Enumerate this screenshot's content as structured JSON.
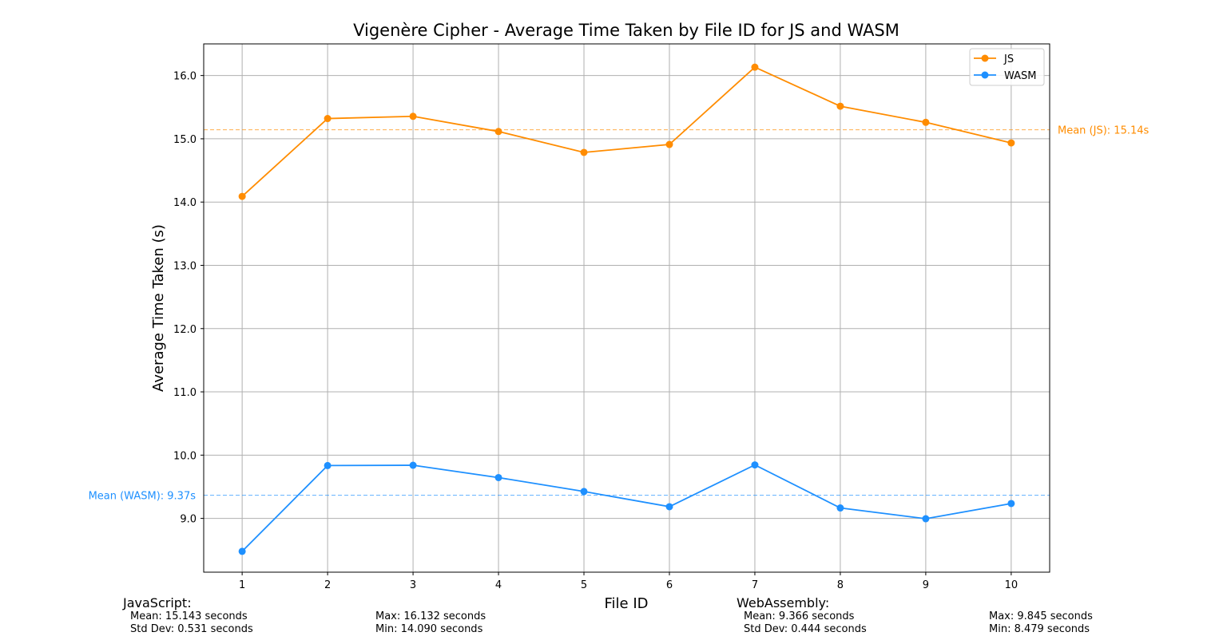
{
  "chart_data": {
    "type": "line",
    "title": "Vigenère Cipher - Average Time Taken by File ID for JS and WASM",
    "xlabel": "File ID",
    "ylabel": "Average Time Taken (s)",
    "x": [
      1,
      2,
      3,
      4,
      5,
      6,
      7,
      8,
      9,
      10
    ],
    "xlim": [
      0.55,
      10.45
    ],
    "ylim": [
      8.15,
      16.5
    ],
    "yticks": [
      "9.0",
      "10.0",
      "11.0",
      "12.0",
      "13.0",
      "14.0",
      "15.0",
      "16.0"
    ],
    "xticks": [
      "1",
      "2",
      "3",
      "4",
      "5",
      "6",
      "7",
      "8",
      "9",
      "10"
    ],
    "grid": true,
    "legend_position": "top-right",
    "series": [
      {
        "name": "JS",
        "color": "#ff8c00",
        "values": [
          14.09,
          15.32,
          15.355,
          15.115,
          14.785,
          14.91,
          16.132,
          15.515,
          15.26,
          14.935
        ]
      },
      {
        "name": "WASM",
        "color": "#1e90ff",
        "values": [
          8.479,
          9.835,
          9.84,
          9.645,
          9.425,
          9.185,
          9.845,
          9.165,
          8.995,
          9.235
        ]
      }
    ],
    "mean_lines": [
      {
        "value": 15.143,
        "label": "Mean (JS): 15.14s",
        "color": "#ff8c00",
        "side": "right"
      },
      {
        "value": 9.366,
        "label": "Mean (WASM): 9.37s",
        "color": "#1e90ff",
        "side": "left"
      }
    ]
  },
  "stats": {
    "js": {
      "heading": "JavaScript:",
      "mean": "Mean: 15.143 seconds",
      "std": "Std Dev: 0.531 seconds",
      "max": "Max: 16.132 seconds",
      "min": "Min: 14.090 seconds"
    },
    "wasm": {
      "heading": "WebAssembly:",
      "mean": "Mean: 9.366 seconds",
      "std": "Std Dev: 0.444 seconds",
      "max": "Max: 9.845 seconds",
      "min": "Min: 8.479 seconds"
    }
  }
}
